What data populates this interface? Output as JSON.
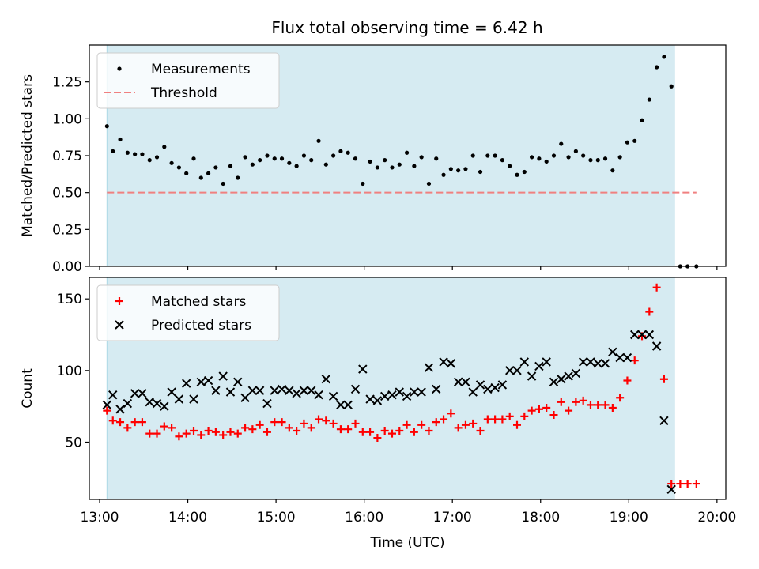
{
  "title": "Flux total observing time = 6.42 h",
  "colors": {
    "shade": "#add8e6",
    "measurement": "#000000",
    "threshold": "#f08080",
    "matched": "#ff0000",
    "predicted": "#000000"
  },
  "chart_data": [
    {
      "type": "scatter",
      "ylabel": "Matched/Predicted stars",
      "xlim": [
        "12:53",
        "20:06"
      ],
      "ylim": [
        0,
        1.5
      ],
      "yticks": [
        "0.00",
        "0.25",
        "0.50",
        "0.75",
        "1.00",
        "1.25"
      ],
      "legend_position": "upper-left",
      "observing_window": [
        "13:05",
        "19:31"
      ],
      "threshold": {
        "name": "Threshold",
        "y": 0.5,
        "x": [
          "13:05",
          "19:46"
        ]
      },
      "series": [
        {
          "name": "Measurements",
          "marker": "dot",
          "points": [
            [
              "13:05",
              0.95
            ],
            [
              "13:09",
              0.78
            ],
            [
              "13:14",
              0.86
            ],
            [
              "13:19",
              0.77
            ],
            [
              "13:24",
              0.76
            ],
            [
              "13:29",
              0.76
            ],
            [
              "13:34",
              0.72
            ],
            [
              "13:39",
              0.74
            ],
            [
              "13:44",
              0.81
            ],
            [
              "13:49",
              0.7
            ],
            [
              "13:54",
              0.67
            ],
            [
              "13:59",
              0.63
            ],
            [
              "14:04",
              0.73
            ],
            [
              "14:09",
              0.6
            ],
            [
              "14:14",
              0.63
            ],
            [
              "14:19",
              0.67
            ],
            [
              "14:24",
              0.56
            ],
            [
              "14:29",
              0.68
            ],
            [
              "14:34",
              0.6
            ],
            [
              "14:39",
              0.74
            ],
            [
              "14:44",
              0.69
            ],
            [
              "14:49",
              0.72
            ],
            [
              "14:54",
              0.75
            ],
            [
              "14:59",
              0.73
            ],
            [
              "15:04",
              0.73
            ],
            [
              "15:09",
              0.7
            ],
            [
              "15:14",
              0.68
            ],
            [
              "15:19",
              0.75
            ],
            [
              "15:24",
              0.72
            ],
            [
              "15:29",
              0.85
            ],
            [
              "15:34",
              0.69
            ],
            [
              "15:39",
              0.75
            ],
            [
              "15:44",
              0.78
            ],
            [
              "15:49",
              0.77
            ],
            [
              "15:54",
              0.73
            ],
            [
              "15:59",
              0.56
            ],
            [
              "16:04",
              0.71
            ],
            [
              "16:09",
              0.67
            ],
            [
              "16:14",
              0.72
            ],
            [
              "16:19",
              0.67
            ],
            [
              "16:24",
              0.69
            ],
            [
              "16:29",
              0.77
            ],
            [
              "16:34",
              0.68
            ],
            [
              "16:39",
              0.74
            ],
            [
              "16:44",
              0.56
            ],
            [
              "16:49",
              0.73
            ],
            [
              "16:54",
              0.62
            ],
            [
              "16:59",
              0.66
            ],
            [
              "17:04",
              0.65
            ],
            [
              "17:09",
              0.66
            ],
            [
              "17:14",
              0.75
            ],
            [
              "17:19",
              0.64
            ],
            [
              "17:24",
              0.75
            ],
            [
              "17:29",
              0.75
            ],
            [
              "17:34",
              0.72
            ],
            [
              "17:39",
              0.68
            ],
            [
              "17:44",
              0.62
            ],
            [
              "17:49",
              0.64
            ],
            [
              "17:54",
              0.74
            ],
            [
              "17:59",
              0.73
            ],
            [
              "18:04",
              0.71
            ],
            [
              "18:09",
              0.75
            ],
            [
              "18:14",
              0.83
            ],
            [
              "18:19",
              0.74
            ],
            [
              "18:24",
              0.78
            ],
            [
              "18:29",
              0.75
            ],
            [
              "18:34",
              0.72
            ],
            [
              "18:39",
              0.72
            ],
            [
              "18:44",
              0.73
            ],
            [
              "18:49",
              0.65
            ],
            [
              "18:54",
              0.74
            ],
            [
              "18:59",
              0.84
            ],
            [
              "19:04",
              0.85
            ],
            [
              "19:09",
              0.99
            ],
            [
              "19:14",
              1.13
            ],
            [
              "19:19",
              1.35
            ],
            [
              "19:24",
              1.42
            ],
            [
              "19:29",
              1.22
            ],
            [
              "19:35",
              0.0
            ],
            [
              "19:40",
              0.0
            ],
            [
              "19:46",
              0.0
            ]
          ]
        }
      ]
    },
    {
      "type": "scatter",
      "xlabel": "Time (UTC)",
      "ylabel": "Count",
      "xlim": [
        "12:53",
        "20:06"
      ],
      "ylim": [
        10,
        165
      ],
      "xticks": [
        "13:00",
        "14:00",
        "15:00",
        "16:00",
        "17:00",
        "18:00",
        "19:00",
        "20:00"
      ],
      "yticks": [
        "50",
        "100",
        "150"
      ],
      "legend_position": "upper-left",
      "observing_window": [
        "13:05",
        "19:31"
      ],
      "series": [
        {
          "name": "Matched stars",
          "marker": "plus",
          "points": [
            [
              "13:05",
              72
            ],
            [
              "13:09",
              65
            ],
            [
              "13:14",
              64
            ],
            [
              "13:19",
              60
            ],
            [
              "13:24",
              64
            ],
            [
              "13:29",
              64
            ],
            [
              "13:34",
              56
            ],
            [
              "13:39",
              56
            ],
            [
              "13:44",
              61
            ],
            [
              "13:49",
              60
            ],
            [
              "13:54",
              54
            ],
            [
              "13:59",
              56
            ],
            [
              "14:04",
              58
            ],
            [
              "14:09",
              55
            ],
            [
              "14:14",
              58
            ],
            [
              "14:19",
              57
            ],
            [
              "14:24",
              55
            ],
            [
              "14:29",
              57
            ],
            [
              "14:34",
              56
            ],
            [
              "14:39",
              60
            ],
            [
              "14:44",
              59
            ],
            [
              "14:49",
              62
            ],
            [
              "14:54",
              57
            ],
            [
              "14:59",
              64
            ],
            [
              "15:04",
              64
            ],
            [
              "15:09",
              60
            ],
            [
              "15:14",
              58
            ],
            [
              "15:19",
              63
            ],
            [
              "15:24",
              60
            ],
            [
              "15:29",
              66
            ],
            [
              "15:34",
              65
            ],
            [
              "15:39",
              63
            ],
            [
              "15:44",
              59
            ],
            [
              "15:49",
              59
            ],
            [
              "15:54",
              63
            ],
            [
              "15:59",
              57
            ],
            [
              "16:04",
              57
            ],
            [
              "16:09",
              53
            ],
            [
              "16:14",
              58
            ],
            [
              "16:19",
              56
            ],
            [
              "16:24",
              58
            ],
            [
              "16:29",
              62
            ],
            [
              "16:34",
              57
            ],
            [
              "16:39",
              62
            ],
            [
              "16:44",
              58
            ],
            [
              "16:49",
              64
            ],
            [
              "16:54",
              66
            ],
            [
              "16:59",
              70
            ],
            [
              "17:04",
              60
            ],
            [
              "17:09",
              62
            ],
            [
              "17:14",
              63
            ],
            [
              "17:19",
              58
            ],
            [
              "17:24",
              66
            ],
            [
              "17:29",
              66
            ],
            [
              "17:34",
              66
            ],
            [
              "17:39",
              68
            ],
            [
              "17:44",
              62
            ],
            [
              "17:49",
              68
            ],
            [
              "17:54",
              72
            ],
            [
              "17:59",
              73
            ],
            [
              "18:04",
              74
            ],
            [
              "18:09",
              69
            ],
            [
              "18:14",
              78
            ],
            [
              "18:19",
              72
            ],
            [
              "18:24",
              78
            ],
            [
              "18:29",
              79
            ],
            [
              "18:34",
              76
            ],
            [
              "18:39",
              76
            ],
            [
              "18:44",
              76
            ],
            [
              "18:49",
              74
            ],
            [
              "18:54",
              81
            ],
            [
              "18:59",
              93
            ],
            [
              "19:04",
              107
            ],
            [
              "19:09",
              124
            ],
            [
              "19:14",
              141
            ],
            [
              "19:19",
              158
            ],
            [
              "19:24",
              94
            ],
            [
              "19:29",
              21
            ],
            [
              "19:35",
              21
            ],
            [
              "19:40",
              21
            ],
            [
              "19:46",
              21
            ]
          ]
        },
        {
          "name": "Predicted stars",
          "marker": "x",
          "points": [
            [
              "13:05",
              76
            ],
            [
              "13:09",
              83
            ],
            [
              "13:14",
              73
            ],
            [
              "13:19",
              77
            ],
            [
              "13:24",
              84
            ],
            [
              "13:29",
              84
            ],
            [
              "13:34",
              78
            ],
            [
              "13:39",
              77
            ],
            [
              "13:44",
              75
            ],
            [
              "13:49",
              85
            ],
            [
              "13:54",
              80
            ],
            [
              "13:59",
              91
            ],
            [
              "14:04",
              80
            ],
            [
              "14:09",
              92
            ],
            [
              "14:14",
              93
            ],
            [
              "14:19",
              86
            ],
            [
              "14:24",
              96
            ],
            [
              "14:29",
              85
            ],
            [
              "14:34",
              92
            ],
            [
              "14:39",
              81
            ],
            [
              "14:44",
              86
            ],
            [
              "14:49",
              86
            ],
            [
              "14:54",
              77
            ],
            [
              "14:59",
              86
            ],
            [
              "15:04",
              87
            ],
            [
              "15:09",
              86
            ],
            [
              "15:14",
              84
            ],
            [
              "15:19",
              86
            ],
            [
              "15:24",
              86
            ],
            [
              "15:29",
              83
            ],
            [
              "15:34",
              94
            ],
            [
              "15:39",
              82
            ],
            [
              "15:44",
              76
            ],
            [
              "15:49",
              76
            ],
            [
              "15:54",
              87
            ],
            [
              "15:59",
              101
            ],
            [
              "16:04",
              80
            ],
            [
              "16:09",
              79
            ],
            [
              "16:14",
              82
            ],
            [
              "16:19",
              83
            ],
            [
              "16:24",
              85
            ],
            [
              "16:29",
              82
            ],
            [
              "16:34",
              85
            ],
            [
              "16:39",
              85
            ],
            [
              "16:44",
              102
            ],
            [
              "16:49",
              87
            ],
            [
              "16:54",
              106
            ],
            [
              "16:59",
              105
            ],
            [
              "17:04",
              92
            ],
            [
              "17:09",
              92
            ],
            [
              "17:14",
              85
            ],
            [
              "17:19",
              90
            ],
            [
              "17:24",
              87
            ],
            [
              "17:29",
              88
            ],
            [
              "17:34",
              90
            ],
            [
              "17:39",
              100
            ],
            [
              "17:44",
              100
            ],
            [
              "17:49",
              106
            ],
            [
              "17:54",
              96
            ],
            [
              "17:59",
              103
            ],
            [
              "18:04",
              106
            ],
            [
              "18:09",
              92
            ],
            [
              "18:14",
              94
            ],
            [
              "18:19",
              96
            ],
            [
              "18:24",
              98
            ],
            [
              "18:29",
              106
            ],
            [
              "18:34",
              106
            ],
            [
              "18:39",
              105
            ],
            [
              "18:44",
              105
            ],
            [
              "18:49",
              113
            ],
            [
              "18:54",
              109
            ],
            [
              "18:59",
              109
            ],
            [
              "19:04",
              125
            ],
            [
              "19:09",
              125
            ],
            [
              "19:14",
              125
            ],
            [
              "19:19",
              117
            ],
            [
              "19:24",
              65
            ],
            [
              "19:29",
              17
            ]
          ]
        }
      ]
    }
  ]
}
